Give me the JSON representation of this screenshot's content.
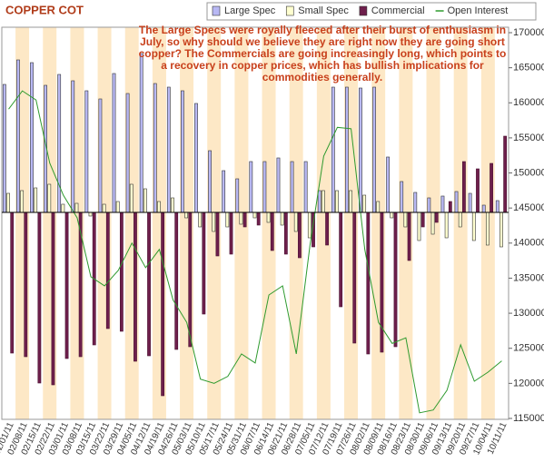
{
  "chart_data": {
    "type": "bar",
    "title": "COPPER COT",
    "annotation": "The Large Specs were royally fleeced after their burst of enthusiasm in July, so why should we believe they are right now they are going short copper? The Commercials are going increasingly long, which points to a recovery in copper prices, which has bullish implications for commodities generally.",
    "categories": [
      "02/01/11",
      "02/08/11",
      "02/15/11",
      "02/22/11",
      "03/01/11",
      "03/08/11",
      "03/15/11",
      "03/22/11",
      "03/29/11",
      "04/05/11",
      "04/12/11",
      "04/19/11",
      "04/26/11",
      "05/03/11",
      "05/10/11",
      "05/17/11",
      "05/24/11",
      "05/31/11",
      "06/07/11",
      "06/14/11",
      "06/21/11",
      "06/28/11",
      "07/05/11",
      "07/12/11",
      "07/19/11",
      "07/26/11",
      "08/02/11",
      "08/09/11",
      "08/16/11",
      "08/23/11",
      "08/30/11",
      "09/06/11",
      "09/13/11",
      "09/20/11",
      "09/27/11",
      "10/04/11",
      "10/11/11"
    ],
    "series": [
      {
        "name": "Large Spec",
        "color": "#b8b8f4",
        "values": [
          141,
          168,
          165,
          140,
          152,
          145,
          134,
          125,
          153,
          131,
          175,
          142,
          138,
          134,
          120,
          68,
          46,
          37,
          56,
          56,
          60,
          56,
          56,
          24,
          138,
          138,
          137,
          138,
          61,
          34,
          22,
          16,
          18,
          23,
          21,
          8,
          13
        ]
      },
      {
        "name": "Small Spec",
        "color": "#ffffd0",
        "values": [
          21,
          24,
          27,
          31,
          9,
          10,
          -4,
          9,
          12,
          31,
          26,
          12,
          16,
          -6,
          -16,
          -21,
          -16,
          -13,
          -6,
          -11,
          -14,
          -21,
          -28,
          24,
          24,
          24,
          19,
          12,
          -6,
          -16,
          -31,
          -24,
          -28,
          -16,
          -31,
          -36,
          -38
        ]
      },
      {
        "name": "Commercial",
        "color": "#6e1f4c",
        "values": [
          -155,
          -159,
          -188,
          -190,
          -161,
          -159,
          -146,
          -128,
          -131,
          -164,
          -158,
          -202,
          -151,
          -148,
          -112,
          -48,
          -46,
          -16,
          -14,
          -42,
          -46,
          -50,
          -38,
          -36,
          -104,
          -144,
          -156,
          -154,
          -148,
          -53,
          -16,
          -11,
          12,
          56,
          48,
          54,
          84
        ]
      },
      {
        "name": "Open Interest",
        "color": "#2e9a2e",
        "axis": "y2",
        "values": [
          159100,
          161700,
          160400,
          151400,
          146800,
          143600,
          135200,
          133900,
          136100,
          140000,
          136500,
          139100,
          131900,
          128700,
          120600,
          120000,
          121000,
          124200,
          122900,
          132600,
          133900,
          124200,
          139700,
          152400,
          156500,
          156300,
          139100,
          128700,
          125700,
          126500,
          115800,
          116200,
          119000,
          125500,
          120300,
          121600,
          123200
        ]
      }
    ],
    "ylim": [
      -227,
      198
    ],
    "y2lim": [
      115000,
      170000
    ],
    "y2ticks": [
      115000,
      120000,
      125000,
      130000,
      135000,
      140000,
      145000,
      150000,
      155000,
      160000,
      165000,
      170000
    ]
  }
}
